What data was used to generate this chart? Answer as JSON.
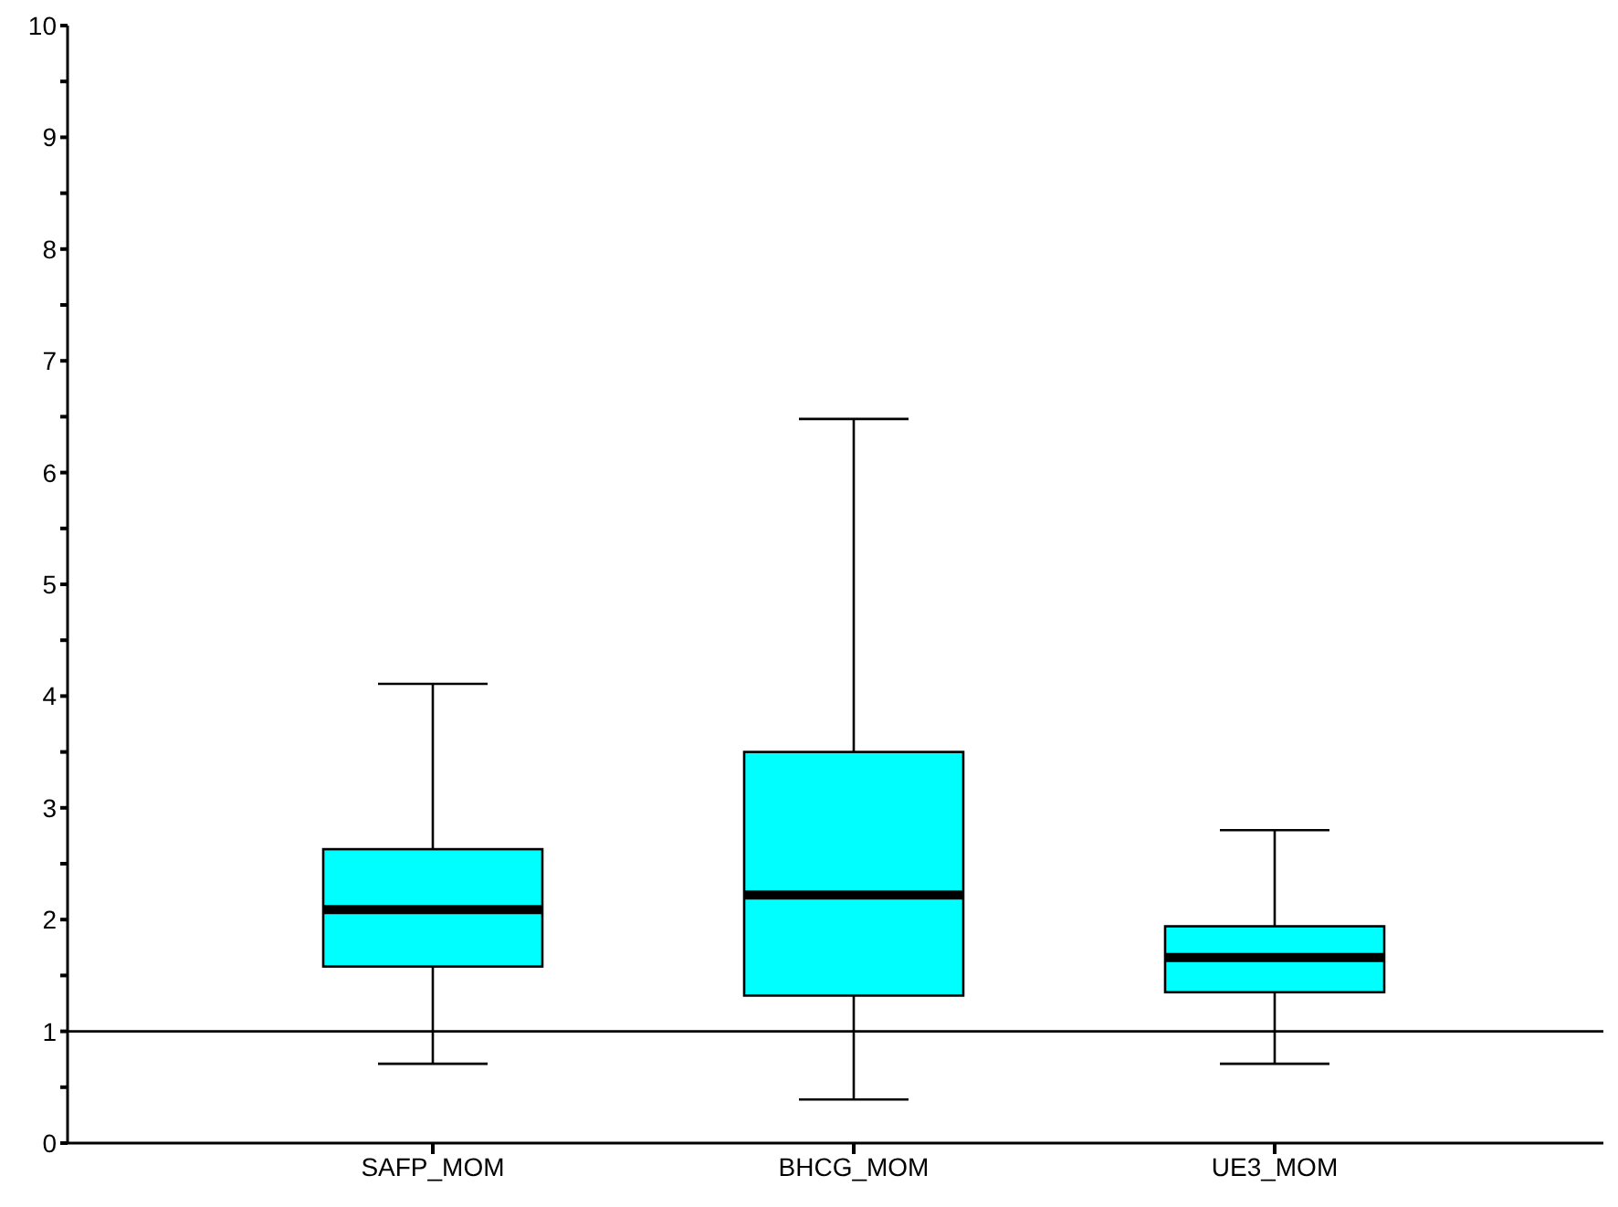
{
  "chart_data": {
    "type": "box",
    "categories": [
      "SAFP_MOM",
      "BHCG_MOM",
      "UE3_MOM"
    ],
    "boxes": [
      {
        "low": 0.71,
        "q1": 1.58,
        "median": 2.09,
        "q3": 2.63,
        "high": 4.11
      },
      {
        "low": 0.39,
        "q1": 1.32,
        "median": 2.22,
        "q3": 3.5,
        "high": 6.48
      },
      {
        "low": 0.71,
        "q1": 1.35,
        "median": 1.66,
        "q3": 1.94,
        "high": 2.8
      }
    ],
    "color": "#00ffff",
    "ylim": [
      0,
      10
    ],
    "yticks": [
      0,
      {
        "value": 0.5,
        "label": null
      },
      1,
      {
        "value": 1.5,
        "label": null
      },
      2,
      {
        "value": 2.5,
        "label": null
      },
      3,
      {
        "value": 3.5,
        "label": null
      },
      4,
      {
        "value": 4.5,
        "label": null
      },
      5,
      {
        "value": 5.5,
        "label": null
      },
      6,
      {
        "value": 6.5,
        "label": null
      },
      7,
      {
        "value": 7.5,
        "label": null
      },
      8,
      {
        "value": 8.5,
        "label": null
      },
      9,
      {
        "value": 9.5,
        "label": null
      },
      10
    ],
    "ref_lines": [
      {
        "axis": "y",
        "value": 1,
        "color": "#000000"
      }
    ],
    "grid": false,
    "legend": false
  }
}
